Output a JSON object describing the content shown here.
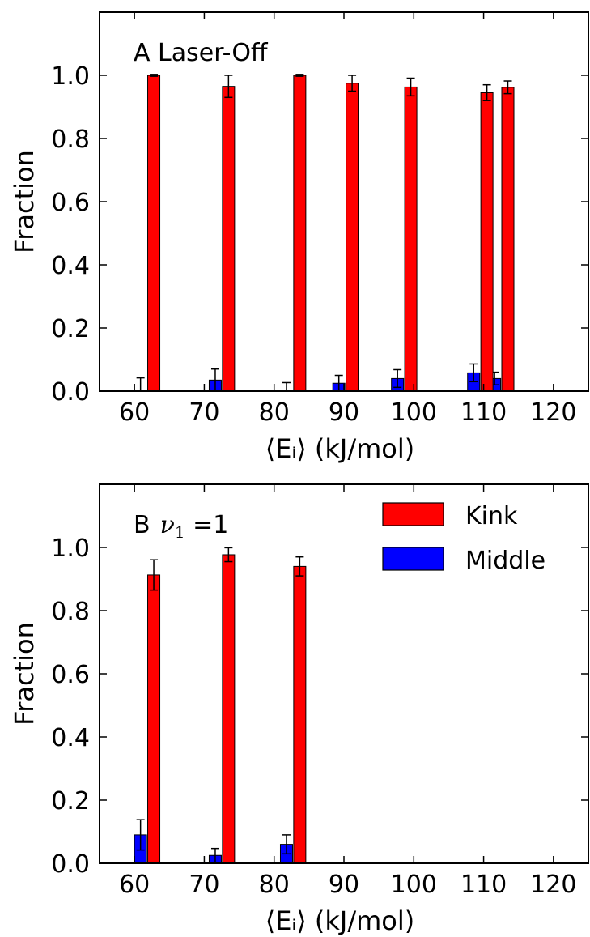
{
  "chart_data": [
    {
      "type": "bar",
      "panel_label": "A Laser-Off",
      "xlabel": "⟨Eᵢ⟩ (kJ/mol)",
      "ylabel": "Fraction",
      "xlim": [
        55,
        125
      ],
      "ylim": [
        0,
        1.2
      ],
      "xticks": [
        60,
        70,
        80,
        90,
        100,
        110,
        120
      ],
      "yticks": [
        0.0,
        0.2,
        0.4,
        0.6,
        0.8,
        1.0
      ],
      "grid": false,
      "legend": null,
      "series": [
        {
          "key": "middle",
          "color": "#0000ff",
          "x": [
            60.0,
            70.7,
            80.9,
            88.4,
            96.8,
            107.7,
            110.7
          ],
          "values": [
            0.0,
            0.035,
            0.0,
            0.025,
            0.04,
            0.058,
            0.04
          ],
          "errors": [
            0.042,
            0.035,
            0.027,
            0.025,
            0.028,
            0.028,
            0.02
          ]
        },
        {
          "key": "kink",
          "color": "#ff0000",
          "x": [
            61.9,
            72.6,
            82.8,
            90.3,
            98.7,
            109.6,
            112.6
          ],
          "values": [
            1.0,
            0.965,
            1.0,
            0.975,
            0.963,
            0.945,
            0.962
          ],
          "errors": [
            0.003,
            0.035,
            0.003,
            0.025,
            0.028,
            0.025,
            0.02
          ]
        }
      ]
    },
    {
      "type": "bar",
      "panel_label_prefix": "B",
      "panel_label_symbol": "ν",
      "panel_label_sub": "1",
      "panel_label_suffix": " =1",
      "xlabel": "⟨Eᵢ⟩ (kJ/mol)",
      "ylabel": "Fraction",
      "xlim": [
        55,
        125
      ],
      "ylim": [
        0,
        1.2
      ],
      "xticks": [
        60,
        70,
        80,
        90,
        100,
        110,
        120
      ],
      "yticks": [
        0.0,
        0.2,
        0.4,
        0.6,
        0.8,
        1.0
      ],
      "grid": false,
      "legend": "top-right",
      "series": [
        {
          "key": "kink",
          "name": "Kink",
          "color": "#ff0000",
          "x": [
            61.9,
            72.6,
            82.8
          ],
          "values": [
            0.913,
            0.977,
            0.94
          ],
          "errors": [
            0.048,
            0.022,
            0.03
          ]
        },
        {
          "key": "middle",
          "name": "Middle",
          "color": "#0000ff",
          "x": [
            60.0,
            70.7,
            80.9
          ],
          "values": [
            0.09,
            0.025,
            0.06
          ],
          "errors": [
            0.048,
            0.022,
            0.03
          ]
        }
      ]
    }
  ]
}
